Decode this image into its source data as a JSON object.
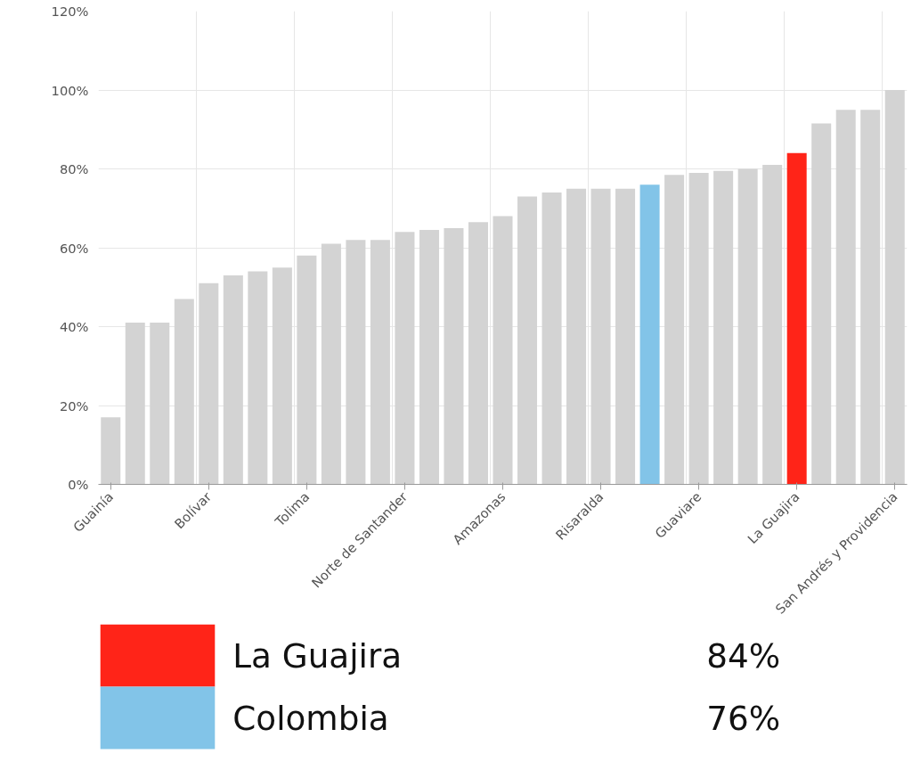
{
  "chart_data": {
    "type": "bar",
    "categories": [
      "Guainía",
      null,
      null,
      null,
      "Bolívar",
      null,
      null,
      null,
      "Tolima",
      null,
      null,
      null,
      "Norte de Santander",
      null,
      null,
      null,
      "Amazonas",
      null,
      null,
      null,
      "Risaralda",
      null,
      null,
      null,
      "Guaviare",
      null,
      null,
      null,
      "La Guajira",
      null,
      null,
      null,
      "San Andrés y Providencia"
    ],
    "series": [
      {
        "color": "#d3d3d3",
        "values": [
          17,
          41,
          41,
          47,
          51,
          53,
          54,
          55,
          58,
          61,
          62,
          62,
          64,
          64.5,
          65,
          66.5,
          68,
          73,
          74,
          75,
          75,
          75,
          null,
          78.5,
          79,
          79.5,
          80,
          81,
          null,
          91.5,
          95,
          95,
          100
        ]
      },
      {
        "name": "La Guajira",
        "color": "#ff2418",
        "values": [
          null,
          null,
          null,
          null,
          null,
          null,
          null,
          null,
          null,
          null,
          null,
          null,
          null,
          null,
          null,
          null,
          null,
          null,
          null,
          null,
          null,
          null,
          null,
          null,
          null,
          null,
          null,
          null,
          84,
          null,
          null,
          null,
          null
        ]
      },
      {
        "name": "Colombia",
        "color": "#82c4e8",
        "values": [
          null,
          null,
          null,
          null,
          null,
          null,
          null,
          null,
          null,
          null,
          null,
          null,
          null,
          null,
          null,
          null,
          null,
          null,
          null,
          null,
          null,
          null,
          76,
          null,
          null,
          null,
          null,
          null,
          null,
          null,
          null,
          null,
          null
        ]
      }
    ],
    "ylim": [
      0,
      120
    ],
    "yticks": [
      {
        "value": 0,
        "label": "0%"
      },
      {
        "value": 20,
        "label": "20%"
      },
      {
        "value": 40,
        "label": "40%"
      },
      {
        "value": 60,
        "label": "60%"
      },
      {
        "value": 80,
        "label": "80%"
      },
      {
        "value": 100,
        "label": "100%"
      },
      {
        "value": 120,
        "label": "120%"
      }
    ],
    "grid": true,
    "legend": "bottom",
    "annotations": [
      "84%",
      "76%"
    ]
  }
}
